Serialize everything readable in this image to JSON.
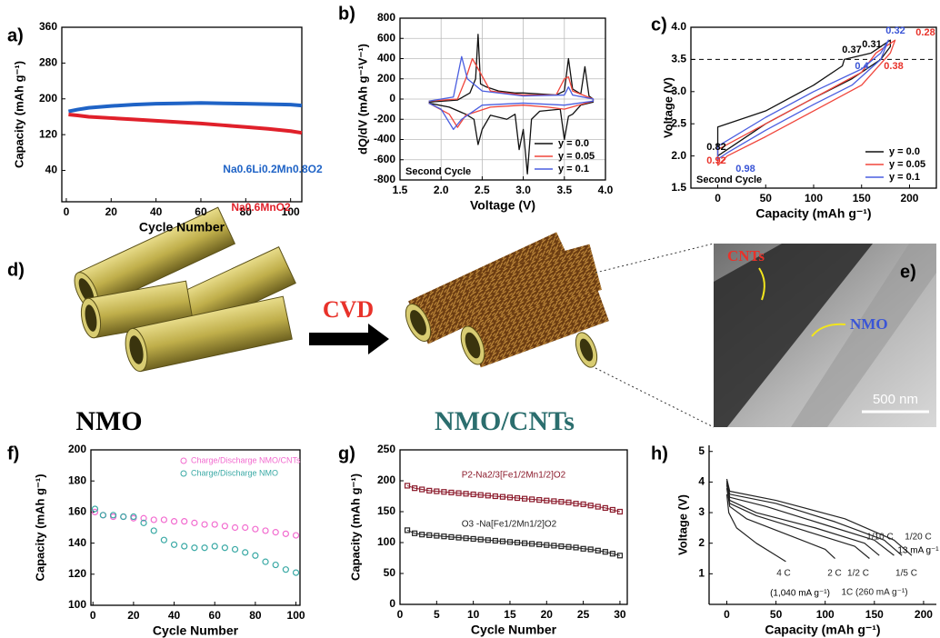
{
  "chart_data": [
    {
      "type": "line",
      "panel_label": "a)",
      "xlabel": "Cycle Number",
      "ylabel": "Capacity (mAh g⁻¹)",
      "x": [
        1,
        5,
        10,
        20,
        30,
        40,
        50,
        60,
        70,
        80,
        90,
        100,
        105
      ],
      "series": [
        {
          "name": "Na0.6Li0.2Mn0.8O2",
          "color": "#1f63c6",
          "values": [
            172,
            176,
            180,
            184,
            187,
            189,
            190,
            191,
            190,
            189,
            188,
            187,
            185
          ]
        },
        {
          "name": "Na0.6MnO2",
          "color": "#e0202a",
          "values": [
            165,
            163,
            160,
            157,
            154,
            151,
            148,
            145,
            141,
            137,
            133,
            128,
            124
          ]
        }
      ],
      "xlim": [
        -2,
        105
      ],
      "ylim": [
        -30,
        360
      ],
      "xticks": [
        0,
        20,
        40,
        60,
        80,
        100
      ],
      "yticks": [
        40,
        120,
        200,
        280,
        360
      ]
    },
    {
      "type": "line",
      "panel_label": "b)",
      "xlabel": "Voltage (V)",
      "ylabel": "dQ/dV (mAh g⁻¹V⁻¹)",
      "annotations": [
        {
          "text": "Second Cycle",
          "color": "#000000"
        }
      ],
      "series": [
        {
          "name": "y = 0.0",
          "color": "#111111",
          "x": [
            1.85,
            2.2,
            2.35,
            2.42,
            2.45,
            2.48,
            2.55,
            2.7,
            2.9,
            3.0,
            3.2,
            3.4,
            3.5,
            3.55,
            3.6,
            3.7,
            3.75,
            3.8,
            3.85,
            3.85,
            3.7,
            3.6,
            3.55,
            3.5,
            3.45,
            3.2,
            3.1,
            3.05,
            3.0,
            2.95,
            2.9,
            2.8,
            2.6,
            2.5,
            2.45,
            2.4,
            2.3,
            2.1,
            1.85
          ],
          "values": [
            -30,
            -10,
            60,
            200,
            640,
            150,
            120,
            80,
            60,
            60,
            50,
            40,
            80,
            400,
            100,
            50,
            320,
            30,
            0,
            -30,
            -60,
            -150,
            -170,
            -400,
            -100,
            -120,
            -200,
            -740,
            -300,
            -500,
            -150,
            -200,
            -160,
            -300,
            -450,
            -200,
            -150,
            -80,
            -40
          ]
        },
        {
          "name": "y = 0.05",
          "color": "#f0463c",
          "x": [
            1.85,
            2.2,
            2.3,
            2.38,
            2.45,
            2.6,
            3.0,
            3.4,
            3.5,
            3.55,
            3.6,
            3.85,
            3.85,
            3.5,
            3.3,
            3.0,
            2.6,
            2.3,
            2.2,
            2.1,
            1.85
          ],
          "values": [
            -20,
            0,
            200,
            400,
            300,
            80,
            40,
            40,
            200,
            220,
            80,
            0,
            -20,
            -100,
            -80,
            -60,
            -80,
            -160,
            -280,
            -150,
            -40
          ]
        },
        {
          "name": "y = 0.1",
          "color": "#4a5ee0",
          "x": [
            1.85,
            2.15,
            2.25,
            2.32,
            2.5,
            3.0,
            3.5,
            3.55,
            3.6,
            3.85,
            3.85,
            3.5,
            3.0,
            2.5,
            2.25,
            2.15,
            2.0,
            1.85
          ],
          "values": [
            -20,
            20,
            420,
            200,
            80,
            30,
            40,
            120,
            40,
            0,
            -20,
            -60,
            -40,
            -60,
            -200,
            -300,
            -100,
            -40
          ]
        }
      ],
      "xlim": [
        1.5,
        4.0
      ],
      "ylim": [
        -800,
        800
      ],
      "xticks": [
        {
          "value": 1.5,
          "label": "1.5"
        },
        {
          "value": 2,
          "label": "2.0"
        },
        {
          "value": 2.5,
          "label": "2.5"
        },
        {
          "value": 3,
          "label": "3.0"
        },
        {
          "value": 3.5,
          "label": "3.5"
        },
        {
          "value": 4,
          "label": "4.0"
        }
      ],
      "yticks": [
        -800,
        -600,
        -400,
        -200,
        0,
        200,
        400,
        600,
        800
      ],
      "grid": true,
      "legend": "lower right"
    },
    {
      "type": "line",
      "panel_label": "c)",
      "xlabel": "Capacity (mAh g⁻¹)",
      "ylabel": "Voltage (V)",
      "annotations": [
        {
          "text": "Second Cycle",
          "color": "#000000"
        },
        {
          "text": "0.37",
          "color": "#000000"
        },
        {
          "text": "0.31",
          "color": "#000000"
        },
        {
          "text": "0.32",
          "color": "#3a55d6"
        },
        {
          "text": "0.28",
          "color": "#e8322a"
        },
        {
          "text": "0.4",
          "color": "#3a55d6"
        },
        {
          "text": "0.38",
          "color": "#e8322a"
        },
        {
          "text": "0.82",
          "color": "#000000"
        },
        {
          "text": "0.92",
          "color": "#e8322a"
        },
        {
          "text": "0.98",
          "color": "#3a55d6"
        }
      ],
      "reference_line": 3.5,
      "series": [
        {
          "name": "y = 0.0",
          "color": "#111111",
          "x": [
            0,
            0,
            50,
            100,
            130,
            132,
            160,
            180,
            180,
            170,
            140,
            100,
            50,
            20,
            0
          ],
          "values": [
            2.0,
            2.45,
            2.7,
            3.1,
            3.4,
            3.5,
            3.6,
            3.8,
            3.7,
            3.5,
            3.2,
            2.9,
            2.5,
            2.2,
            2.0
          ]
        },
        {
          "name": "y = 0.05",
          "color": "#f0463c",
          "x": [
            0,
            0,
            50,
            100,
            150,
            165,
            185,
            180,
            150,
            100,
            50,
            10,
            0
          ],
          "values": [
            1.85,
            2.1,
            2.5,
            2.9,
            3.3,
            3.6,
            3.8,
            3.6,
            3.1,
            2.7,
            2.3,
            2.0,
            1.85
          ]
        },
        {
          "name": "y = 0.1",
          "color": "#4a5ee0",
          "x": [
            0,
            0,
            50,
            100,
            150,
            170,
            178,
            170,
            140,
            100,
            50,
            10,
            0
          ],
          "values": [
            1.95,
            2.15,
            2.6,
            3.0,
            3.35,
            3.6,
            3.8,
            3.5,
            3.1,
            2.8,
            2.4,
            2.05,
            1.95
          ]
        }
      ],
      "xlim": [
        -28,
        228
      ],
      "ylim": [
        1.5,
        4.0
      ],
      "xticks": [
        0,
        50,
        100,
        150,
        200
      ],
      "yticks": [
        1.5,
        {
          "value": 2,
          "label": "2.0"
        },
        2.5,
        {
          "value": 3,
          "label": "3.0"
        },
        3.5,
        {
          "value": 4,
          "label": "4.0"
        }
      ],
      "legend": "lower right"
    },
    {
      "type": "scatter",
      "panel_label": "f)",
      "xlabel": "Cycle Number",
      "ylabel": "Capacity (mAh g⁻¹)",
      "marker": "circle",
      "x": [
        1,
        5,
        10,
        15,
        20,
        25,
        30,
        35,
        40,
        45,
        50,
        55,
        60,
        65,
        70,
        75,
        80,
        85,
        90,
        95,
        100
      ],
      "series": [
        {
          "name": "Charge/Discharge NMO/CNTs",
          "color": "#f26bcf",
          "values": [
            160,
            158,
            157,
            157,
            156,
            156,
            155,
            155,
            154,
            154,
            153,
            152,
            152,
            151,
            150,
            150,
            149,
            148,
            147,
            146,
            145
          ]
        },
        {
          "name": "Charge/Discharge NMO",
          "color": "#3aa9a5",
          "values": [
            162,
            158,
            158,
            157,
            157,
            153,
            148,
            142,
            139,
            138,
            137,
            137,
            138,
            137,
            136,
            134,
            132,
            128,
            126,
            123,
            121
          ]
        }
      ],
      "xlim": [
        -1,
        102
      ],
      "ylim": [
        100,
        200
      ],
      "xticks": [
        0,
        20,
        40,
        60,
        80,
        100
      ],
      "yticks": [
        100,
        120,
        140,
        160,
        180,
        200
      ],
      "legend": "upper right"
    },
    {
      "type": "scatter",
      "panel_label": "g)",
      "xlabel": "Cycle Number",
      "ylabel": "Capacity (mAh g⁻¹)",
      "marker": "square",
      "x": [
        1,
        2,
        3,
        4,
        5,
        6,
        7,
        8,
        9,
        10,
        11,
        12,
        13,
        14,
        15,
        16,
        17,
        18,
        19,
        20,
        21,
        22,
        23,
        24,
        25,
        26,
        27,
        28,
        29,
        30
      ],
      "series": [
        {
          "name": "P2-Na2/3[Fe1/2Mn1/2]O2",
          "color": "#8b1a2b",
          "values": [
            192,
            188,
            186,
            184,
            183,
            182,
            181,
            180,
            179,
            178,
            177,
            176,
            175,
            174,
            173,
            172,
            171,
            170,
            169,
            168,
            167,
            166,
            165,
            163,
            162,
            160,
            158,
            156,
            153,
            150
          ]
        },
        {
          "name": "O3 -Na[Fe1/2Mn1/2]O2",
          "color": "#222222",
          "values": [
            120,
            115,
            113,
            112,
            111,
            110,
            109,
            108,
            107,
            106,
            105,
            104,
            103,
            102,
            101,
            100,
            99,
            98,
            97,
            96,
            95,
            94,
            93,
            92,
            90,
            89,
            87,
            85,
            82,
            79
          ]
        }
      ],
      "xlim": [
        0,
        31
      ],
      "ylim": [
        0,
        250
      ],
      "xticks": [
        0,
        5,
        10,
        15,
        20,
        25,
        30
      ],
      "yticks": [
        0,
        50,
        100,
        150,
        200,
        250
      ]
    },
    {
      "type": "line",
      "panel_label": "h)",
      "xlabel": "Capacity (mAh g⁻¹)",
      "ylabel": "Voltage (V)",
      "annotations": [
        {
          "text": "(1,040 mA g⁻¹)",
          "color": "#000000"
        },
        {
          "text": "13 mA g⁻¹",
          "color": "#000000"
        }
      ],
      "series": [
        {
          "name": "4 C",
          "color": "#222222",
          "x": [
            0,
            2,
            10,
            30,
            50,
            60
          ],
          "values": [
            3.6,
            3.0,
            2.5,
            2.0,
            1.6,
            1.4
          ]
        },
        {
          "name": "2 C",
          "color": "#222222",
          "x": [
            0,
            3,
            20,
            60,
            100,
            110
          ],
          "values": [
            3.8,
            3.2,
            2.8,
            2.3,
            1.8,
            1.5
          ]
        },
        {
          "name": "1C (260 mA g⁻¹)",
          "color": "#222222",
          "x": [
            0,
            3,
            30,
            80,
            130,
            145
          ],
          "values": [
            3.9,
            3.3,
            2.9,
            2.4,
            1.9,
            1.5
          ]
        },
        {
          "name": "1/2 C",
          "color": "#222222",
          "x": [
            0,
            3,
            30,
            90,
            140,
            155
          ],
          "values": [
            3.95,
            3.4,
            3.0,
            2.5,
            2.0,
            1.6
          ]
        },
        {
          "name": "1/5 C",
          "color": "#222222",
          "x": [
            0,
            3,
            40,
            100,
            150,
            170
          ],
          "values": [
            4.0,
            3.5,
            3.2,
            2.6,
            2.1,
            1.6
          ]
        },
        {
          "name": "1/10 C",
          "color": "#222222",
          "x": [
            0,
            3,
            50,
            110,
            160,
            178
          ],
          "values": [
            4.05,
            3.6,
            3.3,
            2.7,
            2.1,
            1.6
          ]
        },
        {
          "name": "1/20 C",
          "color": "#222222",
          "x": [
            0,
            3,
            50,
            120,
            170,
            188
          ],
          "values": [
            4.1,
            3.7,
            3.4,
            2.8,
            2.1,
            1.6
          ]
        }
      ],
      "xlim": [
        -18,
        213
      ],
      "ylim": [
        0,
        5.2
      ],
      "xticks": [
        0,
        50,
        100,
        150,
        200
      ],
      "yticks": [
        1,
        2,
        3,
        4,
        5
      ]
    }
  ],
  "panel_d": {
    "label": "d)",
    "arrow_label": "CVD",
    "left_label": "NMO",
    "right_label": "NMO/CNTs"
  },
  "panel_e": {
    "label": "e)",
    "labels": [
      "CNTs",
      "NMO"
    ],
    "scale_bar": "500 nm"
  }
}
